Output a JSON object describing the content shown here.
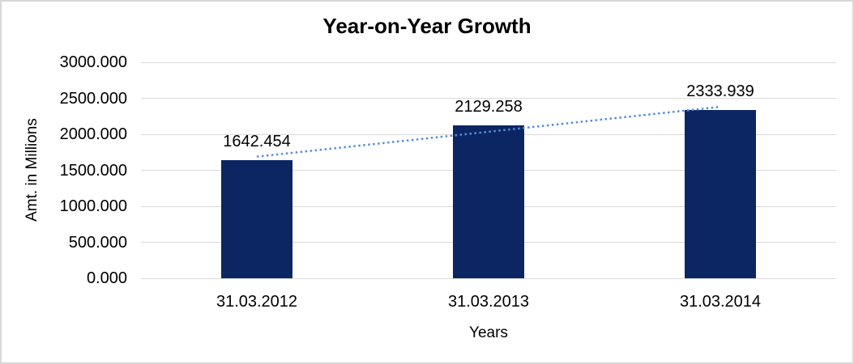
{
  "chart_data": {
    "type": "bar",
    "title": "Year-on-Year Growth",
    "categories": [
      "31.03.2012",
      "31.03.2013",
      "31.03.2014"
    ],
    "values": [
      1642.454,
      2129.258,
      2333.939
    ],
    "data_labels": [
      "1642.454",
      "2129.258",
      "2333.939"
    ],
    "xlabel": "Years",
    "ylabel": "Amt. in Millions",
    "ylim": [
      0,
      3000
    ],
    "ytick_labels": [
      "0.000",
      "500.000",
      "1000.000",
      "1500.000",
      "2000.000",
      "2500.000",
      "3000.000"
    ],
    "grid": true,
    "legend_position": "none",
    "bar_color": "#0c2663",
    "gridline_color": "#d9d9d9",
    "trendline": {
      "type": "linear",
      "style": "dotted",
      "color": "#568ed5"
    }
  }
}
